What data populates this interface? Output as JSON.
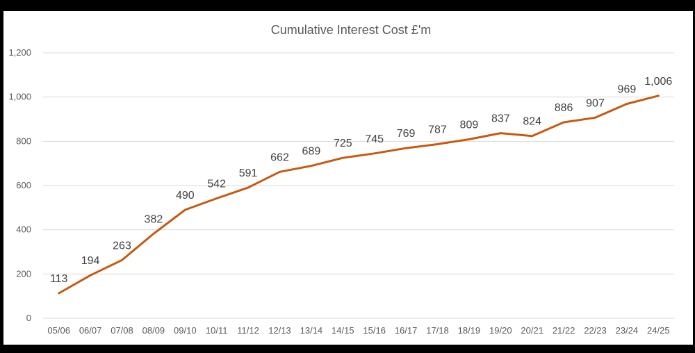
{
  "chart_data": {
    "type": "line",
    "title": "Cumulative Interest Cost £'m",
    "xlabel": "",
    "ylabel": "",
    "categories": [
      "05/06",
      "06/07",
      "07/08",
      "08/09",
      "09/10",
      "10/11",
      "11/12",
      "12/13",
      "13/14",
      "14/15",
      "15/16",
      "16/17",
      "17/18",
      "18/19",
      "19/20",
      "20/21",
      "21/22",
      "22/23",
      "23/24",
      "24/25"
    ],
    "series": [
      {
        "values": [
          113,
          194,
          263,
          382,
          490,
          542,
          591,
          662,
          689,
          725,
          745,
          769,
          787,
          809,
          837,
          824,
          886,
          907,
          969,
          1006
        ],
        "data_labels": [
          "113",
          "194",
          "263",
          "382",
          "490",
          "542",
          "591",
          "662",
          "689",
          "725",
          "745",
          "769",
          "787",
          "809",
          "837",
          "824",
          "886",
          "907",
          "969",
          "1,006"
        ]
      }
    ],
    "ylim": [
      0,
      1200
    ],
    "yticks": [
      0,
      200,
      400,
      600,
      800,
      1000,
      1200
    ],
    "ytick_labels": [
      "0",
      "200",
      "400",
      "600",
      "800",
      "1,000",
      "1,200"
    ],
    "grid": true,
    "legend": "none",
    "line_color": "#C55A11",
    "grid_color": "#D9D9D9"
  }
}
